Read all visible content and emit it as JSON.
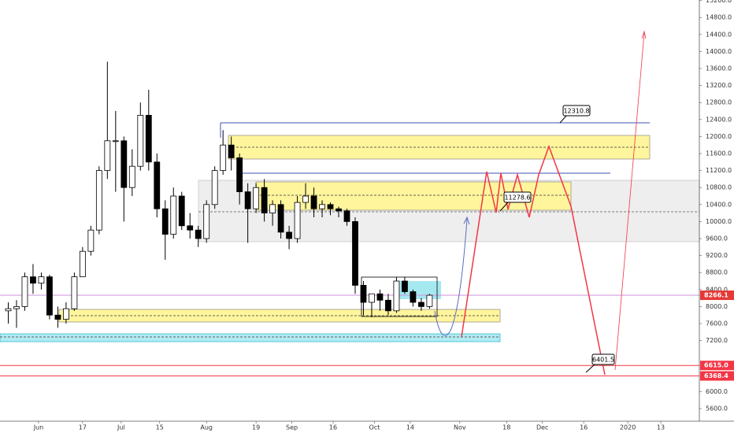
{
  "chart_data": {
    "type": "candlestick",
    "x": [
      "May 21",
      "May 24",
      "May 27",
      "May 30",
      "Jun 2",
      "Jun 5",
      "Jun 8",
      "Jun 11",
      "Jun 14",
      "Jun 17",
      "Jun 20",
      "Jun 23",
      "Jun 26",
      "Jun 29",
      "Jul 2",
      "Jul 5",
      "Jul 8",
      "Jul 11",
      "Jul 14",
      "Jul 17",
      "Jul 20",
      "Jul 23",
      "Jul 26",
      "Jul 29",
      "Aug 1",
      "Aug 4",
      "Aug 7",
      "Aug 10",
      "Aug 13",
      "Aug 16",
      "Aug 19",
      "Aug 22",
      "Aug 25",
      "Aug 28",
      "Aug 31",
      "Sep 3",
      "Sep 6",
      "Sep 9",
      "Sep 12",
      "Sep 15",
      "Sep 18",
      "Sep 21",
      "Sep 24",
      "Sep 27",
      "Sep 30",
      "Oct 3",
      "Oct 6",
      "Oct 9",
      "Oct 12",
      "Oct 15",
      "Oct 18",
      "Oct 21"
    ],
    "open": [
      7900,
      7950,
      8000,
      8700,
      8550,
      8700,
      7800,
      7700,
      7950,
      8700,
      9300,
      9800,
      11200,
      11900,
      11900,
      10800,
      11300,
      12500,
      11400,
      10300,
      9700,
      10600,
      9900,
      9800,
      9600,
      10400,
      11200,
      11800,
      11500,
      10700,
      10300,
      10800,
      10200,
      10400,
      9750,
      9600,
      10450,
      10600,
      10300,
      10400,
      10300,
      10250,
      10000,
      8500,
      8100,
      8300,
      8150,
      7900,
      8600,
      8350,
      8100,
      8000
    ],
    "high": [
      8100,
      8150,
      8800,
      9000,
      8800,
      8750,
      8000,
      8100,
      8800,
      9400,
      9900,
      11300,
      13760,
      12600,
      12000,
      11700,
      12800,
      13100,
      11600,
      10500,
      10800,
      10700,
      10200,
      9900,
      10500,
      11300,
      12150,
      12000,
      11600,
      10900,
      10900,
      11000,
      10500,
      10500,
      9900,
      10600,
      10900,
      10800,
      10500,
      10450,
      10350,
      10300,
      10100,
      8600,
      8300,
      8400,
      8300,
      8700,
      8700,
      8400,
      8200,
      8300
    ],
    "low": [
      7600,
      7500,
      7900,
      8300,
      8400,
      7700,
      7500,
      7600,
      7900,
      8700,
      9200,
      9700,
      11000,
      10700,
      10000,
      10600,
      11200,
      11200,
      10100,
      9100,
      9600,
      9800,
      9600,
      9400,
      9500,
      10300,
      11100,
      11200,
      10400,
      9500,
      10200,
      10000,
      9900,
      9600,
      9350,
      9500,
      10300,
      10100,
      10100,
      10150,
      10100,
      9900,
      8300,
      7800,
      7750,
      7900,
      7800,
      7850,
      8300,
      8000,
      7900,
      7950
    ],
    "close": [
      7950,
      8000,
      8700,
      8550,
      8700,
      7800,
      7700,
      7950,
      8700,
      9300,
      9800,
      11200,
      11900,
      11900,
      10800,
      11300,
      12500,
      11400,
      10300,
      9700,
      10600,
      9900,
      9800,
      9600,
      10400,
      11200,
      11800,
      11500,
      10700,
      10300,
      10800,
      10200,
      10400,
      9750,
      9600,
      10450,
      10600,
      10300,
      10400,
      10300,
      10250,
      10000,
      8500,
      8100,
      8300,
      8150,
      7900,
      8600,
      8350,
      8100,
      8000,
      8266.1
    ],
    "up_color": "#ffffff",
    "down_color": "#000000",
    "wick_color": "#000000",
    "xlim": [
      "May 18",
      "Jan 27"
    ],
    "xticks": [
      {
        "value": "Jun 1",
        "label": "Jun"
      },
      {
        "value": "Jun 17",
        "label": "17"
      },
      {
        "value": "Jul 1",
        "label": "Jul"
      },
      {
        "value": "Jul 15",
        "label": "15"
      },
      {
        "value": "Aug 1",
        "label": "Aug"
      },
      {
        "value": "Aug 19",
        "label": "19"
      },
      {
        "value": "Sep 1",
        "label": "Sep"
      },
      {
        "value": "Sep 16",
        "label": "16"
      },
      {
        "value": "Oct 1",
        "label": "Oct"
      },
      {
        "value": "Oct 14",
        "label": "14"
      },
      {
        "value": "Nov 1",
        "label": "Nov"
      },
      {
        "value": "Nov 18",
        "label": "18"
      },
      {
        "value": "Dec 1",
        "label": "Dec"
      },
      {
        "value": "Dec 16",
        "label": "16"
      },
      {
        "value": "Jan 1",
        "label": "2020"
      },
      {
        "value": "Jan 13",
        "label": "13"
      }
    ],
    "ylim": [
      5304,
      15211
    ],
    "yticks": [
      {
        "value": 5600,
        "label": "5600.0"
      },
      {
        "value": 6000,
        "label": "6000.0"
      },
      {
        "value": 7200,
        "label": "7200.0"
      },
      {
        "value": 7600,
        "label": "7600.0"
      },
      {
        "value": 8000,
        "label": "8000.0"
      },
      {
        "value": 8400,
        "label": "8400.0"
      },
      {
        "value": 8800,
        "label": "8800.0"
      },
      {
        "value": 9200,
        "label": "9200.0"
      },
      {
        "value": 9600,
        "label": "9600.0"
      },
      {
        "value": 10000,
        "label": "10000.0"
      },
      {
        "value": 10400,
        "label": "10400.0"
      },
      {
        "value": 10800,
        "label": "10800.0"
      },
      {
        "value": 11200,
        "label": "11200.0"
      },
      {
        "value": 11600,
        "label": "11600.0"
      },
      {
        "value": 12000,
        "label": "12000.0"
      },
      {
        "value": 12400,
        "label": "12400.0"
      },
      {
        "value": 12800,
        "label": "12800.0"
      },
      {
        "value": 13200,
        "label": "13200.0"
      },
      {
        "value": 13600,
        "label": "13600.0"
      },
      {
        "value": 14000,
        "label": "14000.0"
      },
      {
        "value": 14400,
        "label": "14400.0"
      },
      {
        "value": 14800,
        "label": "14800.0"
      },
      {
        "value": 15200,
        "label": "15200.0"
      }
    ],
    "price_lines": [
      {
        "value": 8266.1,
        "label": "8266.1",
        "color": "#ce93d8",
        "label_color": "#e53935"
      },
      {
        "value": 6615,
        "label": "6615.0",
        "color": "#f23645",
        "label_color": "#f23645"
      },
      {
        "value": 6368.4,
        "label": "6368.4",
        "color": "#f23645",
        "label_color": "#f23645"
      }
    ],
    "annotations": [
      "12310.8",
      "11278.6",
      "6401.5"
    ]
  }
}
